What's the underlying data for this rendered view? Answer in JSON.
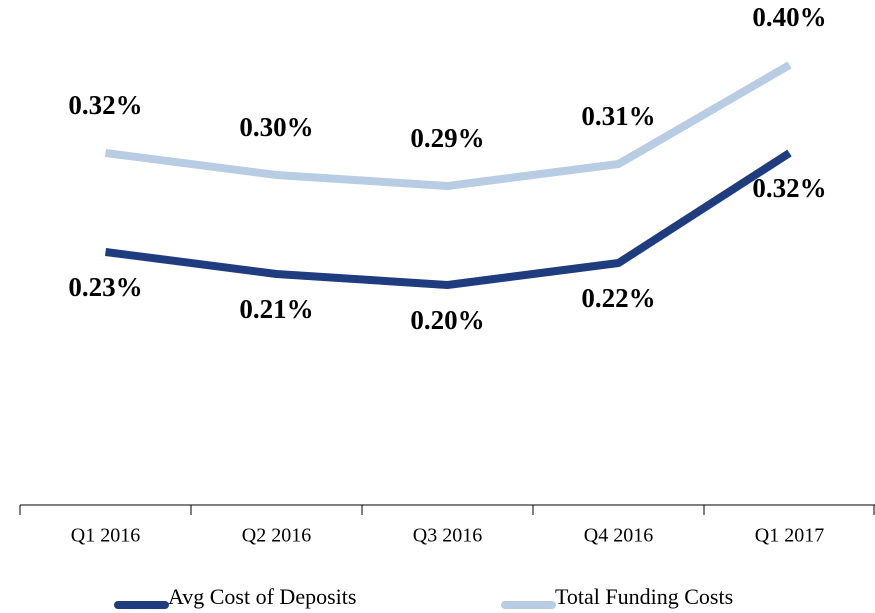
{
  "chart_data": {
    "type": "line",
    "categories": [
      "Q1 2016",
      "Q2 2016",
      "Q3 2016",
      "Q4 2016",
      "Q1 2017"
    ],
    "series": [
      {
        "name": "Avg Cost of Deposits",
        "color": "#1f3c7f",
        "values": [
          0.23,
          0.21,
          0.2,
          0.22,
          0.32
        ],
        "value_labels": [
          "0.23%",
          "0.21%",
          "0.20%",
          "0.22%",
          "0.32%"
        ]
      },
      {
        "name": "Total Funding Costs",
        "color": "#b8cce4",
        "values": [
          0.32,
          0.3,
          0.29,
          0.31,
          0.4
        ],
        "value_labels": [
          "0.32%",
          "0.30%",
          "0.29%",
          "0.31%",
          "0.40%"
        ]
      }
    ],
    "ylim": [
      0,
      0.45
    ]
  }
}
